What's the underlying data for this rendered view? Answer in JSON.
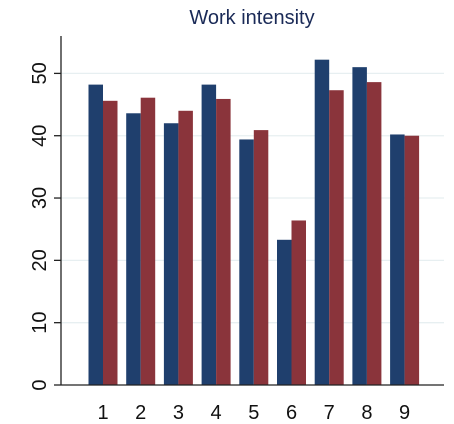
{
  "chart_data": {
    "type": "bar",
    "title": "Work intensity",
    "xlabel": "",
    "ylabel": "",
    "categories": [
      "1",
      "2",
      "3",
      "4",
      "5",
      "6",
      "7",
      "8",
      "9"
    ],
    "series": [
      {
        "color": "#1f3f6d",
        "values": [
          48.2,
          43.6,
          42.0,
          48.2,
          39.4,
          23.3,
          52.2,
          51.0,
          40.2
        ]
      },
      {
        "color": "#8a343b",
        "values": [
          45.6,
          46.1,
          44.0,
          45.9,
          40.9,
          26.4,
          47.3,
          48.6,
          40.0
        ]
      }
    ],
    "ylim": [
      0,
      56
    ],
    "yticks": [
      "0",
      "10",
      "20",
      "30",
      "40",
      "50"
    ],
    "ytick_values": [
      0,
      10,
      20,
      30,
      40,
      50
    ],
    "grid": true,
    "legend": "none"
  }
}
